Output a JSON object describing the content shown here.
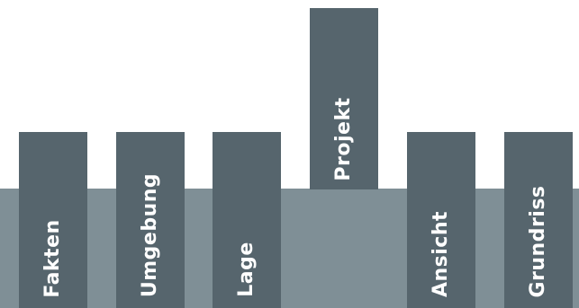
{
  "colors": {
    "tab_background": "#56656d",
    "band_background": "#7f8f96",
    "label_text": "#ffffff",
    "page_background": "#ffffff"
  },
  "nav": {
    "tabs": [
      {
        "label": "Fakten"
      },
      {
        "label": "Umgebung"
      },
      {
        "label": "Lage"
      },
      {
        "label": "Projekt"
      },
      {
        "label": "Ansicht"
      },
      {
        "label": "Grundriss"
      }
    ]
  }
}
